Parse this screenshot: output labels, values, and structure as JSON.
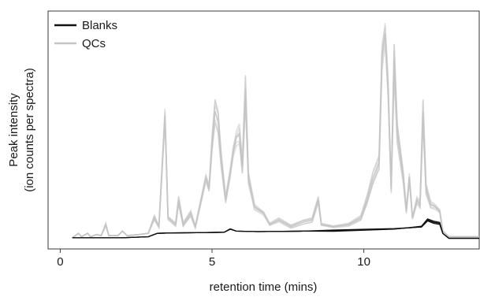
{
  "chart_data": {
    "type": "line",
    "title": "",
    "xlabel": "retention time (mins)",
    "ylabel": [
      "Peak intensity",
      "(ion counts per spectra)"
    ],
    "xlim": [
      -0.4,
      13.8
    ],
    "ylim": [
      -0.02,
      1.05
    ],
    "x_ticks": [
      0,
      5,
      10
    ],
    "x_tick_labels": [
      "0",
      "5",
      "10"
    ],
    "y_tick_labels_shown": false,
    "grid": false,
    "legend_position": "top-left",
    "series": [
      {
        "name": "Blanks",
        "color": "#111111",
        "points": [
          [
            0.4,
            0.03
          ],
          [
            1.0,
            0.03
          ],
          [
            2.0,
            0.03
          ],
          [
            2.9,
            0.035
          ],
          [
            3.2,
            0.05
          ],
          [
            3.6,
            0.052
          ],
          [
            4.5,
            0.053
          ],
          [
            5.4,
            0.055
          ],
          [
            5.6,
            0.07
          ],
          [
            5.8,
            0.06
          ],
          [
            6.5,
            0.058
          ],
          [
            8.0,
            0.06
          ],
          [
            9.0,
            0.062
          ],
          [
            10.0,
            0.066
          ],
          [
            11.0,
            0.07
          ],
          [
            11.5,
            0.075
          ],
          [
            11.9,
            0.08
          ],
          [
            12.1,
            0.11
          ],
          [
            12.3,
            0.1
          ],
          [
            12.5,
            0.095
          ],
          [
            12.6,
            0.05
          ],
          [
            12.8,
            0.028
          ],
          [
            13.8,
            0.028
          ]
        ]
      },
      {
        "name": "QCs",
        "color": "#c4c4c4",
        "points": [
          [
            0.4,
            0.03
          ],
          [
            0.6,
            0.05
          ],
          [
            0.7,
            0.035
          ],
          [
            0.9,
            0.05
          ],
          [
            1.0,
            0.035
          ],
          [
            1.2,
            0.045
          ],
          [
            1.35,
            0.04
          ],
          [
            1.5,
            0.09
          ],
          [
            1.6,
            0.04
          ],
          [
            1.9,
            0.04
          ],
          [
            2.05,
            0.06
          ],
          [
            2.2,
            0.04
          ],
          [
            2.6,
            0.045
          ],
          [
            2.9,
            0.05
          ],
          [
            3.1,
            0.12
          ],
          [
            3.25,
            0.08
          ],
          [
            3.45,
            0.58
          ],
          [
            3.55,
            0.12
          ],
          [
            3.8,
            0.09
          ],
          [
            3.9,
            0.2
          ],
          [
            4.05,
            0.09
          ],
          [
            4.3,
            0.14
          ],
          [
            4.45,
            0.08
          ],
          [
            4.8,
            0.3
          ],
          [
            4.9,
            0.25
          ],
          [
            5.0,
            0.45
          ],
          [
            5.1,
            0.6
          ],
          [
            5.2,
            0.55
          ],
          [
            5.3,
            0.38
          ],
          [
            5.45,
            0.2
          ],
          [
            5.6,
            0.32
          ],
          [
            5.7,
            0.42
          ],
          [
            5.8,
            0.48
          ],
          [
            5.9,
            0.5
          ],
          [
            6.0,
            0.35
          ],
          [
            6.1,
            0.7
          ],
          [
            6.2,
            0.3
          ],
          [
            6.4,
            0.17
          ],
          [
            6.7,
            0.14
          ],
          [
            6.9,
            0.09
          ],
          [
            7.2,
            0.11
          ],
          [
            7.6,
            0.08
          ],
          [
            8.0,
            0.1
          ],
          [
            8.3,
            0.11
          ],
          [
            8.5,
            0.2
          ],
          [
            8.6,
            0.09
          ],
          [
            9.0,
            0.08
          ],
          [
            9.5,
            0.09
          ],
          [
            9.9,
            0.12
          ],
          [
            10.1,
            0.2
          ],
          [
            10.3,
            0.3
          ],
          [
            10.5,
            0.37
          ],
          [
            10.6,
            0.85
          ],
          [
            10.7,
            0.95
          ],
          [
            10.8,
            0.7
          ],
          [
            10.9,
            0.25
          ],
          [
            11.0,
            0.83
          ],
          [
            11.1,
            0.5
          ],
          [
            11.3,
            0.3
          ],
          [
            11.4,
            0.15
          ],
          [
            11.5,
            0.3
          ],
          [
            11.6,
            0.12
          ],
          [
            11.75,
            0.2
          ],
          [
            11.85,
            0.18
          ],
          [
            11.95,
            0.6
          ],
          [
            12.05,
            0.25
          ],
          [
            12.2,
            0.18
          ],
          [
            12.35,
            0.17
          ],
          [
            12.5,
            0.15
          ],
          [
            12.6,
            0.06
          ],
          [
            12.8,
            0.035
          ],
          [
            13.8,
            0.035
          ]
        ]
      }
    ]
  }
}
